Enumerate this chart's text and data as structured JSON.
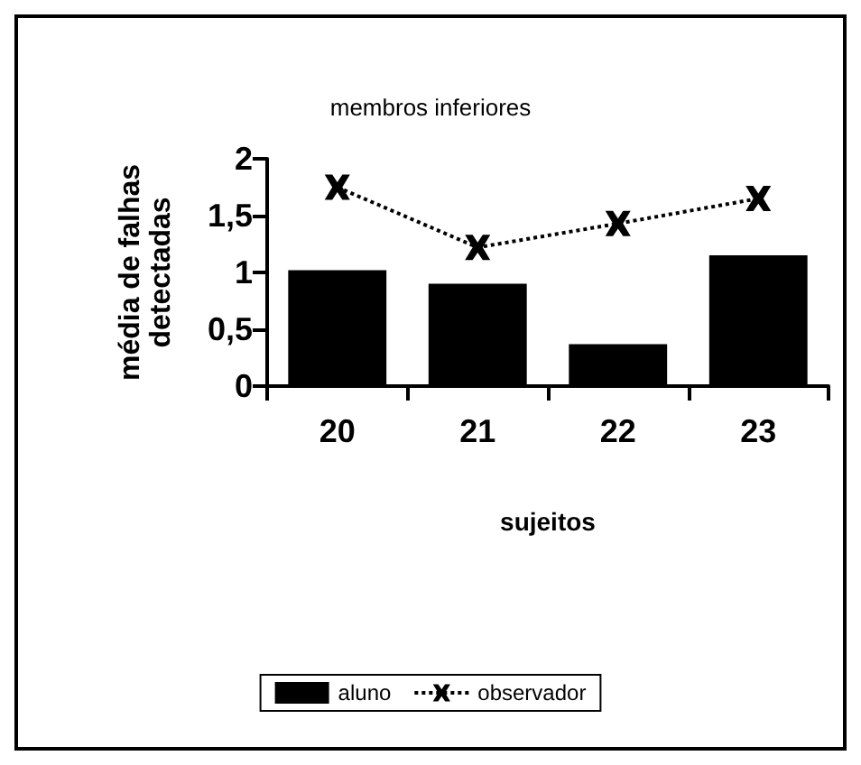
{
  "chart_data": {
    "type": "bar",
    "title": "membros inferiores",
    "xlabel": "sujeitos",
    "ylabel": "média de falhas\ndetectadas",
    "categories": [
      "20",
      "21",
      "22",
      "23"
    ],
    "series": [
      {
        "name": "aluno",
        "color": "#000000",
        "values": [
          1.02,
          0.9,
          0.37,
          1.15
        ]
      },
      {
        "name": "observador",
        "type": "line",
        "color": "#000000",
        "marker": "cross",
        "line_style": "dotted",
        "values": [
          1.75,
          1.22,
          1.43,
          1.65
        ]
      }
    ],
    "ylim": [
      0,
      2
    ],
    "yticks": [
      0,
      {
        "value": 0.5,
        "label": "0,5"
      },
      1,
      {
        "value": 1.5,
        "label": "1,5"
      },
      2
    ],
    "grid": false,
    "legend": "bottom"
  }
}
